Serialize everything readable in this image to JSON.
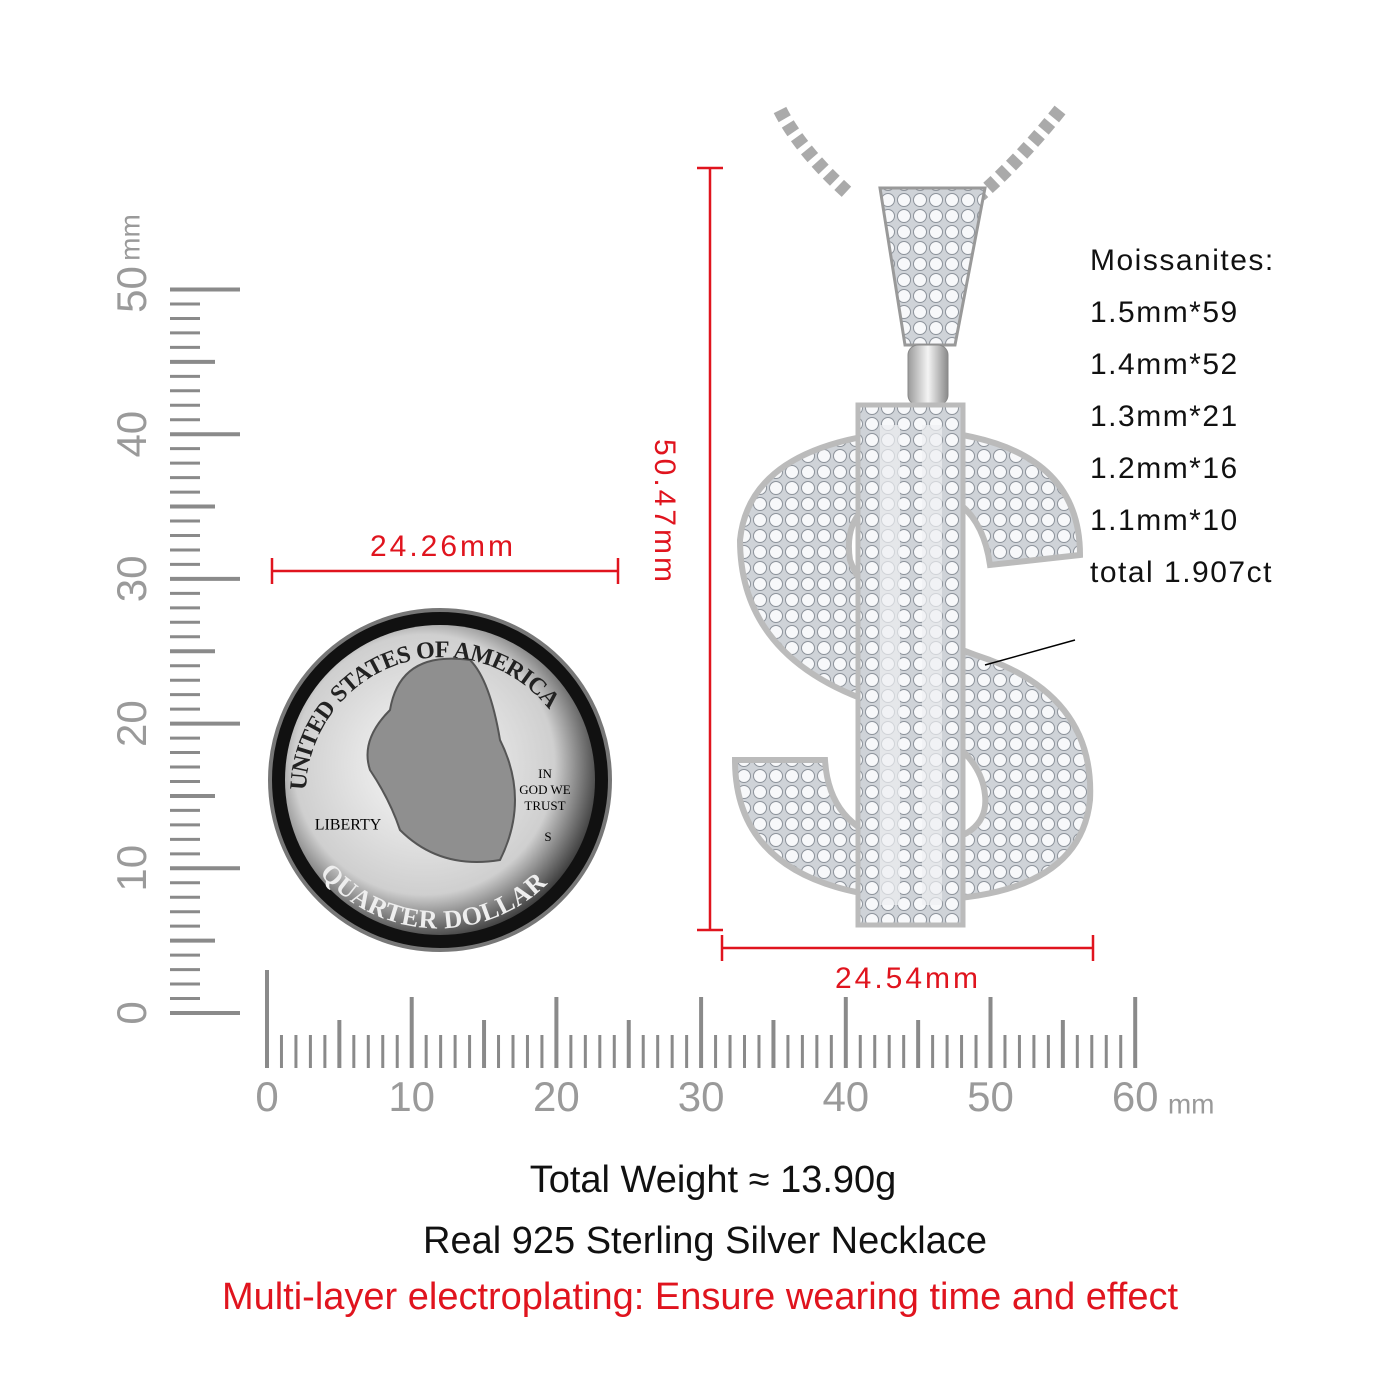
{
  "ruler_x": {
    "labels": [
      0,
      10,
      20,
      30,
      40,
      50,
      60
    ],
    "unit": "mm"
  },
  "ruler_y": {
    "labels": [
      0,
      10,
      20,
      30,
      40,
      50
    ],
    "unit": "mm"
  },
  "coin": {
    "top": "UNITED STATES OF AMERICA",
    "motto": [
      "IN",
      "GOD WE",
      "TRUST"
    ],
    "liberty": "LIBERTY",
    "mint": "S",
    "bottom": "QUARTER DOLLAR"
  },
  "dimensions": {
    "coin_width": "24.26mm",
    "pendant_height": "50.47mm",
    "pendant_width": "24.54mm"
  },
  "stones": {
    "title": "Moissanites:",
    "items": [
      "1.5mm*59",
      "1.4mm*52",
      "1.3mm*21",
      "1.2mm*16",
      "1.1mm*10"
    ],
    "total": "total 1.907ct"
  },
  "footer": {
    "weight": "Total Weight ≈ 13.90g",
    "material": "Real 925 Sterling Silver Necklace",
    "plating": "Multi-layer electroplating: Ensure wearing time and effect"
  }
}
